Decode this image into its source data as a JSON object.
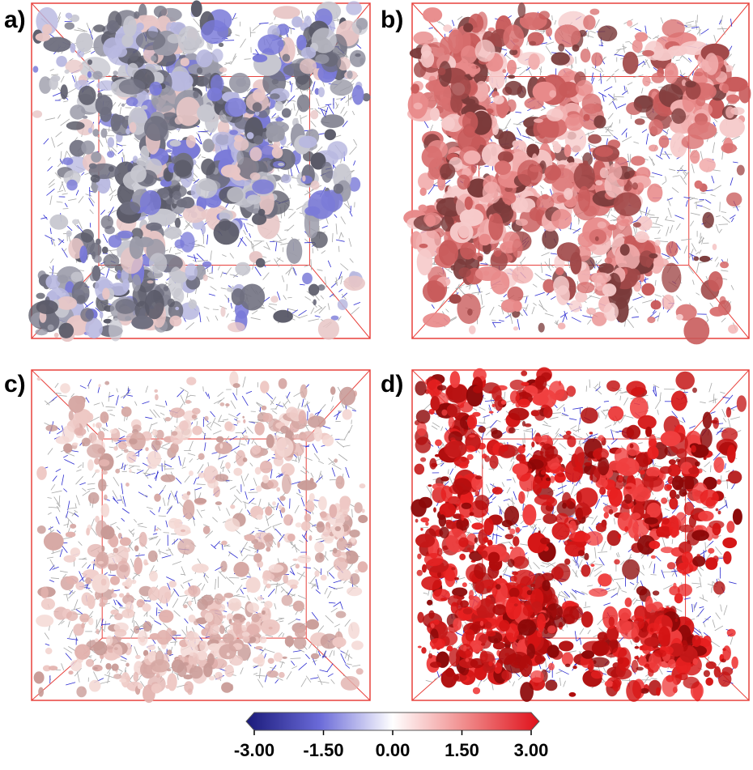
{
  "panels": [
    {
      "label": "a)",
      "theme": "blue-grey"
    },
    {
      "label": "b)",
      "theme": "pink-red"
    },
    {
      "label": "c)",
      "theme": "light-pink"
    },
    {
      "label": "d)",
      "theme": "red"
    }
  ],
  "colorbar": {
    "min": -3.0,
    "max": 3.0,
    "ticks": [
      "-3.00",
      "-1.50",
      "0.00",
      "1.50",
      "3.00"
    ],
    "stops": [
      {
        "offset": 0,
        "color": "#1a1a7a"
      },
      {
        "offset": 0.25,
        "color": "#6a6ad8"
      },
      {
        "offset": 0.5,
        "color": "#ffffff"
      },
      {
        "offset": 0.75,
        "color": "#f08a8a"
      },
      {
        "offset": 1,
        "color": "#e0101a"
      }
    ]
  },
  "colors": {
    "box_edge": "#e8413c",
    "molecule_grey": "#a8a8a8",
    "molecule_blue": "#2b2bd0"
  }
}
